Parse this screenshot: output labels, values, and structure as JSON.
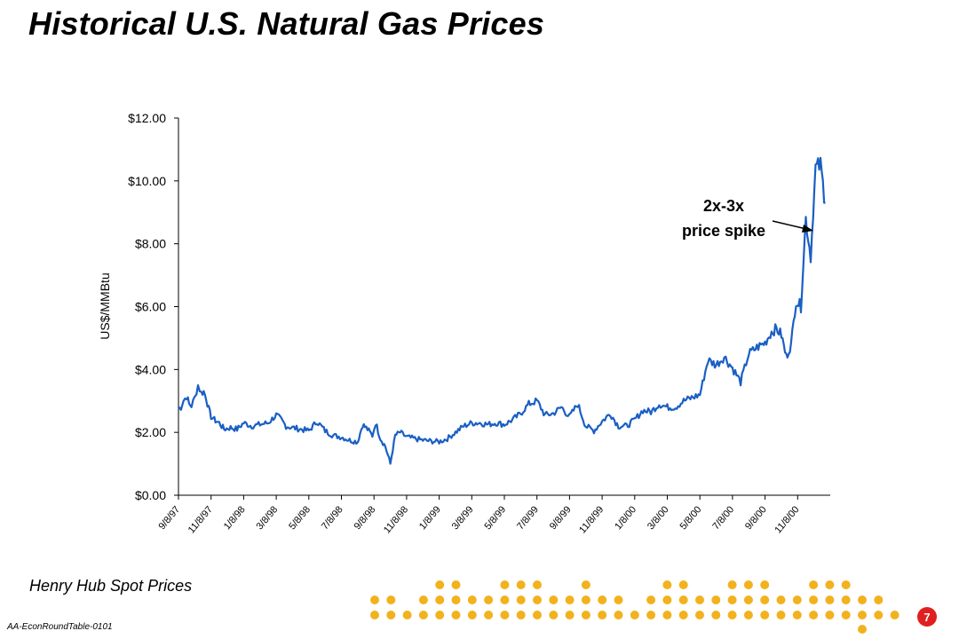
{
  "page": {
    "title": "Historical U.S. Natural Gas Prices",
    "subtitle": "Henry Hub Spot Prices",
    "footer_code": "AA-EconRoundTable-0101",
    "page_number": "7"
  },
  "colors": {
    "series": "#1a5fc4",
    "dots": "#f2b21c",
    "page_badge": "#e02020"
  },
  "chart_data": {
    "type": "line",
    "title": "",
    "ylabel": "US$/MMBtu",
    "xlabel": "",
    "ylim": [
      0,
      12
    ],
    "yticks": [
      "$0.00",
      "$2.00",
      "$4.00",
      "$6.00",
      "$8.00",
      "$10.00",
      "$12.00"
    ],
    "ytick_values": [
      0,
      2,
      4,
      6,
      8,
      10,
      12
    ],
    "xticks": [
      "9/8/97",
      "11/8/97",
      "1/8/98",
      "3/8/98",
      "5/8/98",
      "7/8/98",
      "9/8/98",
      "11/8/98",
      "1/8/99",
      "3/8/99",
      "5/8/99",
      "7/8/99",
      "9/8/99",
      "11/8/99",
      "1/8/00",
      "3/8/00",
      "5/8/00",
      "7/8/00",
      "9/8/00",
      "11/8/00"
    ],
    "x_unit": "months since 9/8/97",
    "grid": false,
    "series": [
      {
        "name": "",
        "x": [
          0.0,
          0.15,
          0.3,
          0.5,
          0.65,
          0.8,
          1.0,
          1.2,
          1.4,
          1.55,
          1.7,
          1.85,
          2.0,
          2.2,
          2.5,
          2.8,
          3.2,
          3.6,
          4.0,
          4.5,
          5.0,
          5.5,
          6.0,
          6.3,
          6.6,
          7.0,
          7.5,
          8.0,
          8.5,
          9.0,
          9.5,
          10.0,
          10.5,
          11.0,
          11.3,
          11.6,
          11.9,
          12.1,
          12.4,
          12.7,
          13.0,
          13.3,
          13.6,
          14.0,
          14.5,
          15.0,
          15.5,
          16.0,
          16.5,
          17.0,
          17.5,
          18.0,
          18.5,
          19.0,
          19.5,
          20.0,
          20.5,
          21.0,
          21.5,
          22.0,
          22.5,
          23.0,
          23.5,
          24.0,
          24.5,
          25.0,
          25.5,
          26.0,
          26.5,
          27.0,
          27.5,
          28.0,
          28.5,
          29.0,
          29.5,
          30.0,
          30.5,
          31.0,
          31.5,
          32.0,
          32.5,
          33.0,
          33.5,
          34.0,
          34.5,
          35.0,
          35.5,
          36.0,
          36.4,
          36.7,
          37.0,
          37.3,
          37.6,
          37.9,
          38.2,
          38.5,
          38.8,
          39.1,
          39.4,
          39.7
        ],
        "values": [
          2.75,
          2.8,
          3.0,
          3.15,
          2.9,
          2.85,
          3.1,
          3.5,
          3.25,
          3.3,
          3.1,
          2.75,
          2.5,
          2.4,
          2.3,
          2.1,
          2.15,
          2.1,
          2.3,
          2.2,
          2.25,
          2.3,
          2.55,
          2.4,
          2.2,
          2.15,
          2.1,
          2.05,
          2.35,
          2.05,
          1.9,
          1.85,
          1.75,
          1.7,
          2.25,
          2.1,
          1.9,
          2.3,
          1.8,
          1.55,
          1.0,
          1.9,
          2.0,
          1.85,
          1.8,
          1.75,
          1.72,
          1.7,
          1.8,
          2.0,
          2.2,
          2.3,
          2.3,
          2.25,
          2.3,
          2.25,
          2.4,
          2.6,
          2.9,
          3.0,
          2.55,
          2.6,
          2.8,
          2.5,
          2.9,
          2.2,
          2.05,
          2.35,
          2.6,
          2.2,
          2.2,
          2.4,
          2.7,
          2.65,
          2.9,
          2.8,
          2.8,
          3.0,
          3.1,
          3.2,
          4.3,
          4.15,
          4.4,
          4.05,
          3.6,
          4.5,
          4.7,
          4.85,
          5.2,
          5.3,
          5.1,
          4.4,
          4.8,
          6.2,
          6.0,
          8.8,
          7.6,
          10.4,
          10.5,
          9.3
        ]
      }
    ],
    "annotations": [
      {
        "text_line1": "2x-3x",
        "text_line2": "price spike"
      }
    ]
  }
}
